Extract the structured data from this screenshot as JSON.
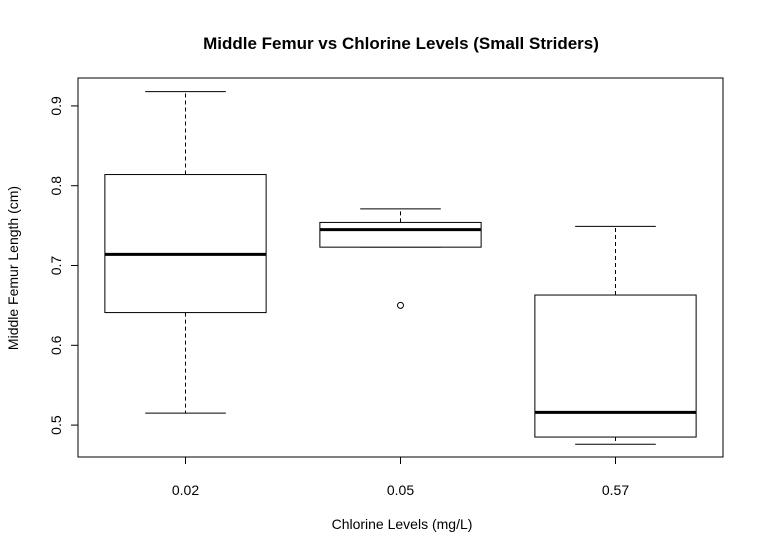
{
  "chart_data": {
    "type": "boxplot",
    "title": "Middle Femur vs Chlorine Levels (Small Striders)",
    "xlabel": "Chlorine Levels (mg/L)",
    "ylabel": "Middle Femur Length (cm)",
    "categories": [
      "0.02",
      "0.05",
      "0.57"
    ],
    "y_ticks": [
      "0.5",
      "0.6",
      "0.7",
      "0.8",
      "0.9"
    ],
    "ylim": [
      0.46,
      0.935
    ],
    "grid": false,
    "boxes": [
      {
        "category": "0.02",
        "whisker_low": 0.515,
        "q1": 0.641,
        "median": 0.714,
        "q3": 0.814,
        "whisker_high": 0.918,
        "outliers": []
      },
      {
        "category": "0.05",
        "whisker_low": 0.723,
        "q1": 0.723,
        "median": 0.745,
        "q3": 0.754,
        "whisker_high": 0.771,
        "outliers": [
          0.65
        ]
      },
      {
        "category": "0.57",
        "whisker_low": 0.476,
        "q1": 0.485,
        "median": 0.516,
        "q3": 0.663,
        "whisker_high": 0.749,
        "outliers": []
      }
    ]
  }
}
